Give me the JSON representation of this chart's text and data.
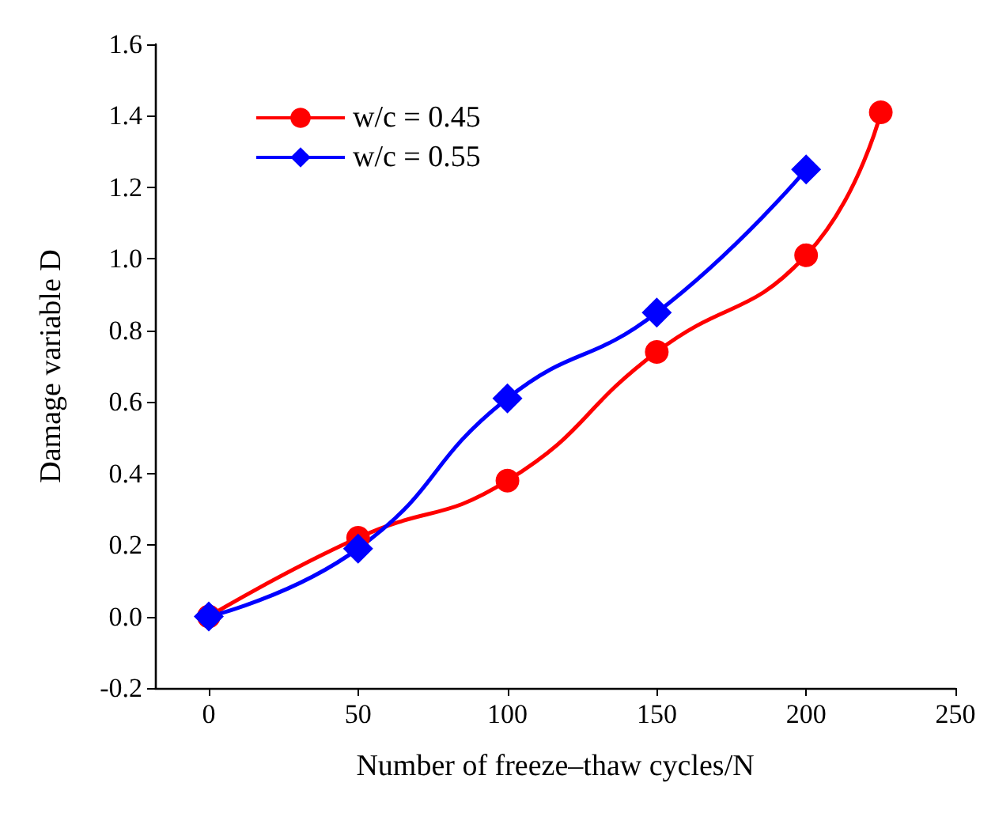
{
  "chart_data": {
    "type": "line",
    "xlabel": "Number of freeze–thaw cycles/N",
    "ylabel": "Damage variable D",
    "xlim": [
      -18,
      250
    ],
    "xticks": [
      0,
      50,
      100,
      150,
      200,
      250
    ],
    "ylim": [
      -0.2,
      1.6
    ],
    "yticks": [
      -0.2,
      {
        "value": 0,
        "label": "0.0"
      },
      0.2,
      0.4,
      0.6,
      0.8,
      {
        "value": 1,
        "label": "1.0"
      },
      1.2,
      1.4,
      1.6
    ],
    "grid": false,
    "legend": "top left",
    "series": [
      {
        "name": "w/c = 0.45",
        "color": "#ff0000",
        "marker": "circle",
        "x": [
          0,
          50,
          100,
          150,
          200,
          225
        ],
        "values": [
          0,
          0.22,
          0.38,
          0.74,
          1.01,
          1.41
        ]
      },
      {
        "name": "w/c = 0.55",
        "color": "#0000ff",
        "marker": "diamond",
        "x": [
          0,
          50,
          100,
          150,
          200
        ],
        "values": [
          0,
          0.19,
          0.61,
          0.85,
          1.25
        ]
      }
    ]
  }
}
